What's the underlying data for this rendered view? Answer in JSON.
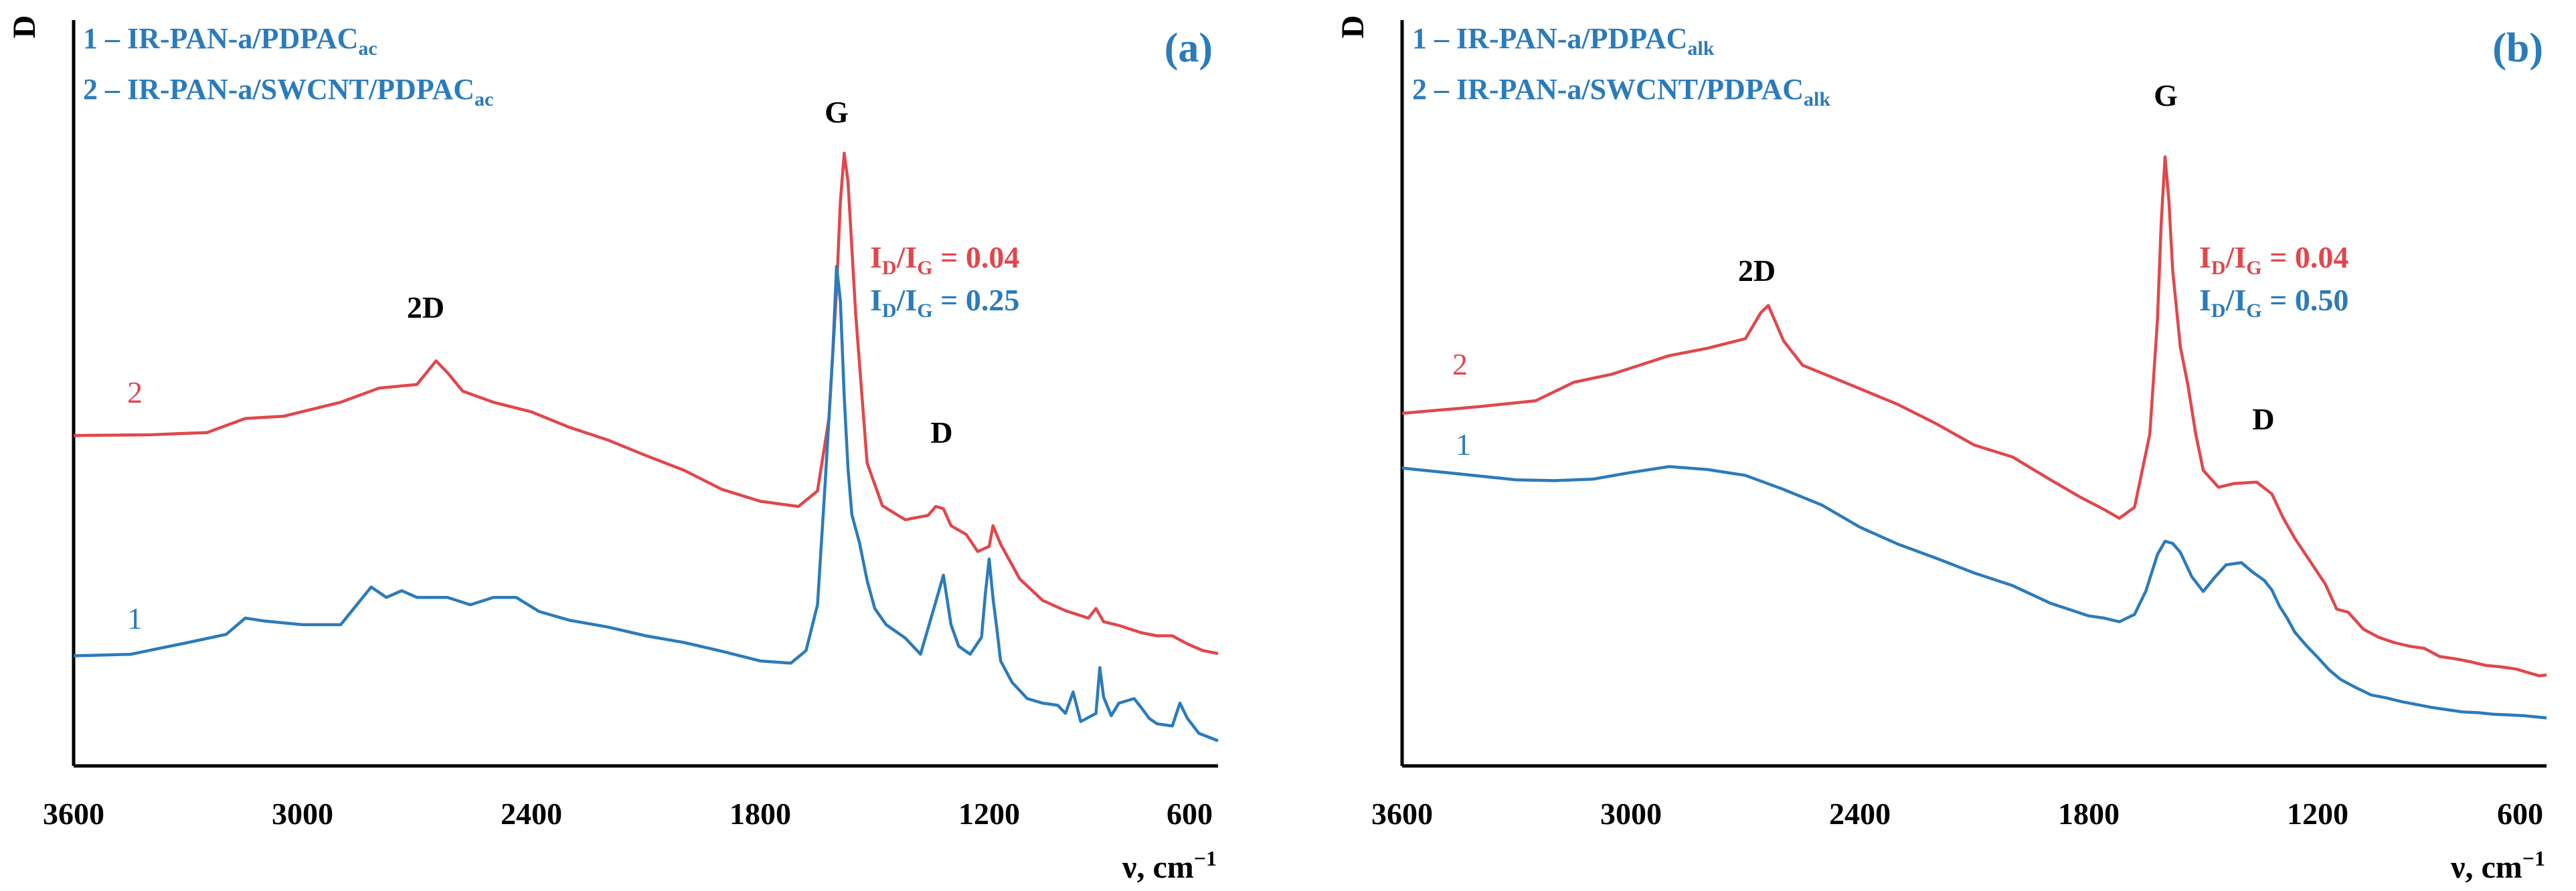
{
  "colors": {
    "sample1": "#2B7BBA",
    "sample2": "#E0474C",
    "axis": "#000000"
  },
  "chart_data": [
    {
      "type": "line",
      "panel_label": "(a)",
      "xlabel": "ν, cm",
      "xlabel_sup": "−1",
      "ylabel": "D",
      "x_reversed": true,
      "xlim": [
        3600,
        600
      ],
      "x_ticks": [
        "3600",
        "3000",
        "2400",
        "1800",
        "1200",
        "600"
      ],
      "ylim": [
        0,
        100
      ],
      "peak_labels": [
        "2D",
        "G",
        "D"
      ],
      "ratios": [
        {
          "series": "2",
          "text": "I",
          "sub": "D",
          "mid": "/I",
          "sub2": "G",
          "value": " = 0.04"
        },
        {
          "series": "1",
          "text": "I",
          "sub": "D",
          "mid": "/I",
          "sub2": "G",
          "value": " = 0.25"
        }
      ],
      "legend": [
        {
          "num": "1",
          "name": "1 – IR-PAN-a/PDPAC",
          "sub": "ac"
        },
        {
          "num": "2",
          "name": "2 – IR-PAN-a/SWCNT/PDPAC",
          "sub": "ac"
        }
      ],
      "series": [
        {
          "name": "2",
          "color": "#E0474C",
          "x": [
            3600,
            3400,
            3250,
            3150,
            3050,
            2900,
            2800,
            2700,
            2650,
            2620,
            2580,
            2500,
            2400,
            2300,
            2200,
            2100,
            2000,
            1900,
            1800,
            1700,
            1650,
            1620,
            1600,
            1590,
            1580,
            1570,
            1550,
            1520,
            1480,
            1420,
            1360,
            1340,
            1320,
            1300,
            1260,
            1230,
            1200,
            1190,
            1170,
            1120,
            1060,
            1000,
            940,
            920,
            900,
            860,
            800,
            760,
            720,
            680,
            640,
            600
          ],
          "values": [
            44.7,
            44.8,
            45.1,
            47.0,
            47.3,
            49.2,
            51.1,
            51.6,
            54.8,
            53.2,
            50.7,
            49.2,
            47.9,
            45.8,
            44.1,
            42.0,
            40.0,
            37.4,
            35.8,
            35.1,
            37.2,
            47.0,
            64.4,
            76.4,
            82.9,
            79.0,
            61.2,
            41.0,
            35.2,
            33.3,
            33.9,
            35.1,
            34.8,
            32.5,
            31.3,
            29.0,
            29.7,
            32.5,
            30.0,
            25.3,
            22.4,
            21.0,
            20.0,
            21.3,
            19.5,
            19.0,
            18.0,
            17.6,
            17.6,
            16.5,
            15.6,
            15.2
          ]
        },
        {
          "name": "1",
          "color": "#2B7BBA",
          "x": [
            3600,
            3450,
            3300,
            3200,
            3150,
            3100,
            3000,
            2900,
            2820,
            2780,
            2740,
            2700,
            2620,
            2560,
            2500,
            2440,
            2380,
            2300,
            2200,
            2100,
            2000,
            1900,
            1800,
            1720,
            1680,
            1650,
            1630,
            1610,
            1600,
            1590,
            1580,
            1570,
            1560,
            1540,
            1520,
            1500,
            1470,
            1420,
            1380,
            1340,
            1320,
            1300,
            1280,
            1250,
            1220,
            1210,
            1200,
            1190,
            1180,
            1170,
            1140,
            1100,
            1060,
            1020,
            1000,
            980,
            960,
            920,
            910,
            900,
            880,
            860,
            820,
            800,
            780,
            760,
            720,
            700,
            680,
            650,
            620,
            600
          ],
          "values": [
            14.9,
            15.1,
            16.7,
            17.8,
            20.0,
            19.6,
            19.1,
            19.1,
            24.2,
            22.8,
            23.7,
            22.8,
            22.8,
            21.8,
            22.8,
            22.8,
            20.9,
            19.7,
            18.8,
            17.6,
            16.7,
            15.5,
            14.2,
            13.9,
            15.6,
            21.8,
            38.2,
            55.9,
            67.6,
            62.9,
            50.0,
            40.2,
            34.0,
            30.2,
            25.1,
            21.3,
            19.1,
            17.3,
            15.1,
            22.2,
            25.8,
            19.1,
            16.2,
            15.1,
            17.4,
            23.3,
            28.0,
            22.7,
            18.6,
            14.2,
            11.3,
            9.1,
            8.5,
            8.2,
            7.1,
            10.0,
            6.0,
            7.1,
            13.3,
            9.3,
            6.8,
            8.5,
            9.1,
            7.8,
            6.4,
            5.7,
            5.4,
            8.5,
            6.4,
            4.4,
            3.8,
            3.4
          ]
        }
      ]
    },
    {
      "type": "line",
      "panel_label": "(b)",
      "xlabel": "ν, cm",
      "xlabel_sup": "−1",
      "ylabel": "D",
      "x_reversed": true,
      "xlim": [
        3600,
        600
      ],
      "x_ticks": [
        "3600",
        "3000",
        "2400",
        "1800",
        "1200",
        "600"
      ],
      "ylim": [
        0,
        100
      ],
      "peak_labels": [
        "2D",
        "G",
        "D"
      ],
      "ratios": [
        {
          "series": "2",
          "text": "I",
          "sub": "D",
          "mid": "/I",
          "sub2": "G",
          "value": " = 0.04"
        },
        {
          "series": "1",
          "text": "I",
          "sub": "D",
          "mid": "/I",
          "sub2": "G",
          "value": " = 0.50"
        }
      ],
      "legend": [
        {
          "num": "1",
          "name": "1 – IR-PAN-a/PDPAC",
          "sub": "alk"
        },
        {
          "num": "2",
          "name": "2 – IR-PAN-a/SWCNT/PDPAC",
          "sub": "alk"
        }
      ],
      "series": [
        {
          "name": "2",
          "color": "#E0474C",
          "x": [
            3600,
            3400,
            3250,
            3150,
            3050,
            2900,
            2800,
            2700,
            2660,
            2640,
            2600,
            2550,
            2450,
            2300,
            2200,
            2100,
            2000,
            1900,
            1820,
            1760,
            1720,
            1680,
            1640,
            1620,
            1610,
            1600,
            1590,
            1580,
            1560,
            1540,
            1520,
            1500,
            1460,
            1420,
            1360,
            1320,
            1290,
            1260,
            1220,
            1180,
            1150,
            1120,
            1080,
            1040,
            1000,
            960,
            920,
            880,
            840,
            800,
            760,
            720,
            680,
            640,
            620,
            600
          ],
          "values": [
            47.7,
            48.6,
            49.4,
            51.9,
            53.0,
            55.5,
            56.5,
            57.8,
            61.3,
            62.3,
            57.5,
            54.2,
            52.1,
            48.9,
            46.3,
            43.4,
            41.8,
            38.7,
            36.3,
            34.7,
            33.5,
            35.0,
            44.9,
            60.3,
            73.6,
            82.4,
            76.5,
            67.0,
            56.7,
            51.5,
            45.0,
            40.0,
            37.7,
            38.2,
            38.4,
            36.8,
            33.5,
            30.8,
            27.7,
            24.6,
            21.2,
            20.8,
            18.5,
            17.4,
            16.7,
            16.2,
            15.9,
            14.8,
            14.5,
            14.1,
            13.6,
            13.4,
            13.1,
            12.5,
            12.2,
            12.3
          ]
        },
        {
          "name": "1",
          "color": "#2B7BBA",
          "x": [
            3600,
            3450,
            3300,
            3200,
            3100,
            3000,
            2900,
            2800,
            2700,
            2600,
            2500,
            2400,
            2300,
            2200,
            2100,
            2000,
            1900,
            1800,
            1760,
            1720,
            1680,
            1650,
            1620,
            1600,
            1580,
            1560,
            1530,
            1500,
            1470,
            1440,
            1400,
            1370,
            1340,
            1320,
            1300,
            1280,
            1260,
            1230,
            1200,
            1170,
            1140,
            1100,
            1060,
            1020,
            980,
            940,
            900,
            860,
            820,
            780,
            740,
            700,
            660,
            620,
            600
          ],
          "values": [
            40.3,
            39.5,
            38.7,
            38.6,
            38.8,
            39.7,
            40.5,
            40.1,
            39.3,
            37.4,
            35.3,
            32.3,
            30.0,
            28.1,
            26.1,
            24.4,
            22.0,
            20.3,
            20.0,
            19.5,
            20.5,
            23.7,
            28.6,
            30.4,
            30.1,
            28.9,
            25.6,
            23.6,
            25.5,
            27.2,
            27.5,
            26.2,
            25.1,
            23.8,
            21.6,
            20.0,
            18.1,
            16.3,
            14.7,
            13.0,
            11.7,
            10.6,
            9.6,
            9.2,
            8.7,
            8.3,
            7.9,
            7.6,
            7.3,
            7.2,
            7.0,
            6.9,
            6.8,
            6.6,
            6.5
          ]
        }
      ]
    }
  ]
}
